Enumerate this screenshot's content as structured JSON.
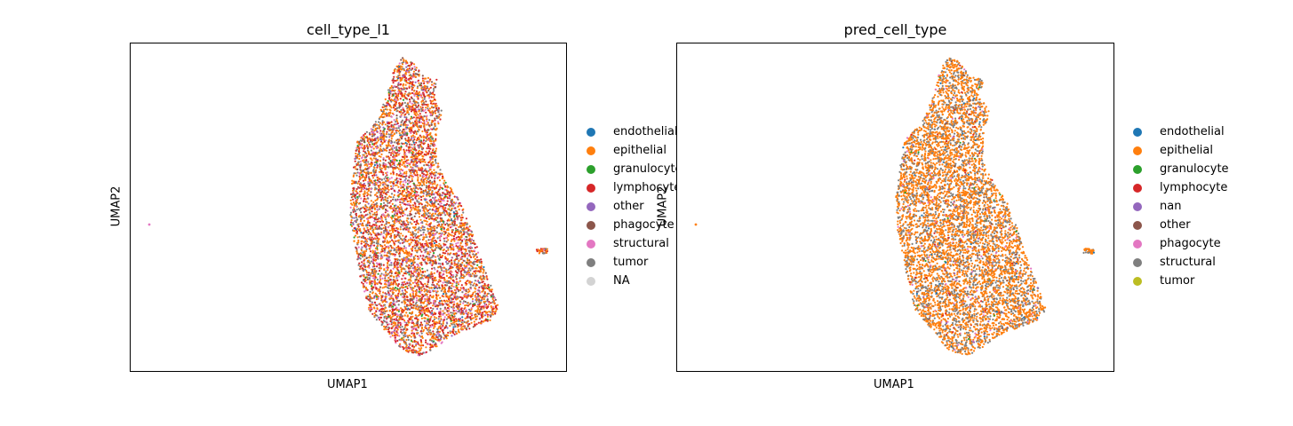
{
  "chart_data": [
    {
      "type": "scatter",
      "title": "cell_type_l1",
      "xlabel": "UMAP1",
      "ylabel": "UMAP2",
      "grid": false,
      "legend_position": "right",
      "series": [
        {
          "name": "endothelial",
          "color": "#1f77b4",
          "weight": 1
        },
        {
          "name": "epithelial",
          "color": "#ff7f0e",
          "weight": 38
        },
        {
          "name": "granulocyte",
          "color": "#2ca02c",
          "weight": 2
        },
        {
          "name": "lymphocyte",
          "color": "#d62728",
          "weight": 26
        },
        {
          "name": "other",
          "color": "#9467bd",
          "weight": 3
        },
        {
          "name": "phagocyte",
          "color": "#8c564b",
          "weight": 5
        },
        {
          "name": "structural",
          "color": "#e377c2",
          "weight": 9
        },
        {
          "name": "tumor",
          "color": "#7f7f7f",
          "weight": 16
        },
        {
          "name": "NA",
          "color": "#d3d3d3",
          "weight": 0
        }
      ]
    },
    {
      "type": "scatter",
      "title": "pred_cell_type",
      "xlabel": "UMAP1",
      "ylabel": "UMAP2",
      "grid": false,
      "legend_position": "right",
      "series": [
        {
          "name": "endothelial",
          "color": "#1f77b4",
          "weight": 1
        },
        {
          "name": "epithelial",
          "color": "#ff7f0e",
          "weight": 68
        },
        {
          "name": "granulocyte",
          "color": "#2ca02c",
          "weight": 0.5
        },
        {
          "name": "lymphocyte",
          "color": "#d62728",
          "weight": 1
        },
        {
          "name": "nan",
          "color": "#9467bd",
          "weight": 0.5
        },
        {
          "name": "other",
          "color": "#8c564b",
          "weight": 1
        },
        {
          "name": "phagocyte",
          "color": "#e377c2",
          "weight": 2
        },
        {
          "name": "structural",
          "color": "#7f7f7f",
          "weight": 26
        },
        {
          "name": "tumor",
          "color": "#bcbd22",
          "weight": 0
        }
      ]
    }
  ]
}
